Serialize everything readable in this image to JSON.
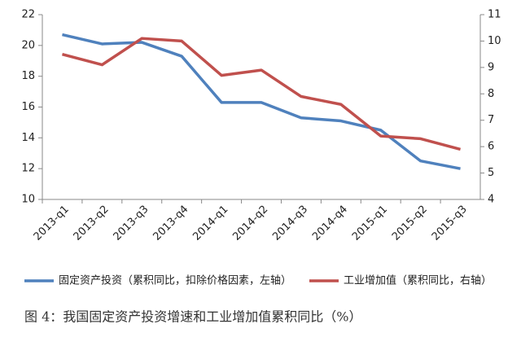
{
  "chart_data": {
    "type": "line",
    "title": "图 4：我国固定资产投资增速和工业增加值累积同比（%）",
    "categories": [
      "2013-q1",
      "2013-q2",
      "2013-q3",
      "2013-q4",
      "2014-q1",
      "2014-q2",
      "2014-q3",
      "2014-q4",
      "2015-q1",
      "2015-q2",
      "2015-q3"
    ],
    "series": [
      {
        "name": "固定资产投资（累积同比，扣除价格因素，左轴）",
        "color": "#4f81bd",
        "values": [
          20.7,
          20.1,
          20.2,
          19.3,
          16.3,
          16.3,
          15.3,
          15.1,
          14.5,
          12.5,
          12.0
        ]
      },
      {
        "name": "工业增加值（累积同比，右轴）",
        "color": "#c0504d",
        "axis": "y2",
        "values": [
          9.5,
          9.1,
          10.1,
          10.0,
          8.7,
          8.9,
          7.9,
          7.6,
          6.4,
          6.3,
          5.9
        ]
      }
    ],
    "ylim": [
      10,
      22
    ],
    "yticks": [
      10,
      12,
      14,
      16,
      18,
      20,
      22
    ],
    "y2lim": [
      4,
      11
    ],
    "y2ticks": [
      4,
      5,
      6,
      7,
      8,
      9,
      10,
      11
    ]
  }
}
